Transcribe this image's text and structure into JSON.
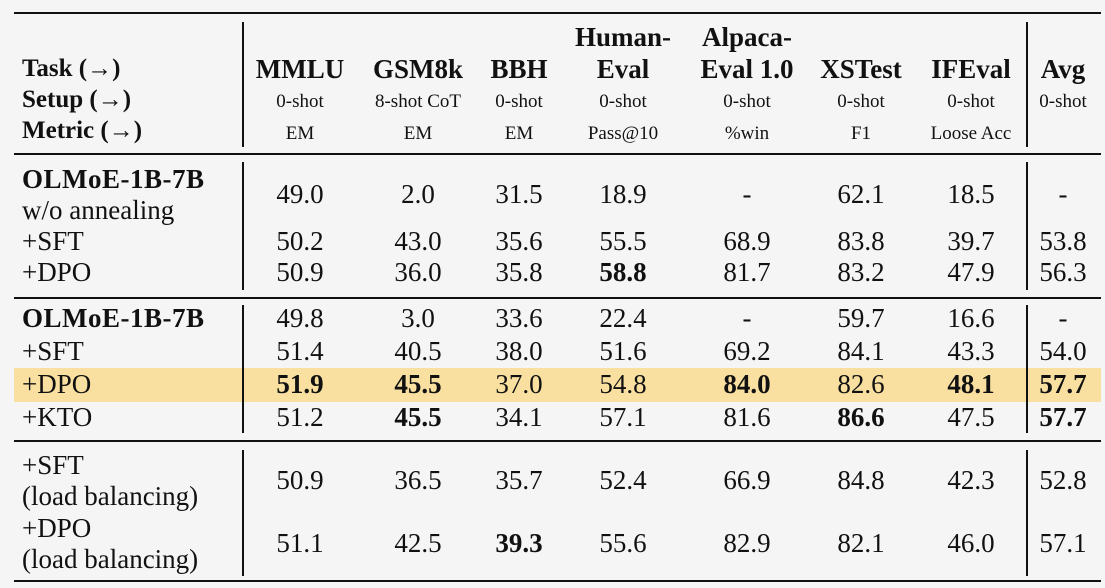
{
  "row_labels": {
    "task": "Task (→)",
    "setup": "Setup (→)",
    "metric": "Metric (→)"
  },
  "columns": [
    {
      "name_line1": "",
      "name_line2": "MMLU",
      "setup": "0-shot",
      "metric": "EM"
    },
    {
      "name_line1": "",
      "name_line2": "GSM8k",
      "setup": "8-shot CoT",
      "metric": "EM"
    },
    {
      "name_line1": "",
      "name_line2": "BBH",
      "setup": "0-shot",
      "metric": "EM"
    },
    {
      "name_line1": "Human-",
      "name_line2": "Eval",
      "setup": "0-shot",
      "metric": "Pass@10"
    },
    {
      "name_line1": "Alpaca-",
      "name_line2": "Eval 1.0",
      "setup": "0-shot",
      "metric": "%win"
    },
    {
      "name_line1": "",
      "name_line2": "XSTest",
      "setup": "0-shot",
      "metric": "F1"
    },
    {
      "name_line1": "",
      "name_line2": "IFEval",
      "setup": "0-shot",
      "metric": "Loose Acc"
    },
    {
      "name_line1": "",
      "name_line2": "Avg",
      "setup": "0-shot",
      "metric": ""
    }
  ],
  "rows": [
    {
      "label": [
        "OLMoE-1B-7B",
        "w/o annealing"
      ],
      "label_bold_first": true,
      "values": [
        "49.0",
        "2.0",
        "31.5",
        "18.9",
        "-",
        "62.1",
        "18.5",
        "-"
      ],
      "bold": []
    },
    {
      "label": [
        "+SFT"
      ],
      "values": [
        "50.2",
        "43.0",
        "35.6",
        "55.5",
        "68.9",
        "83.8",
        "39.7",
        "53.8"
      ],
      "bold": []
    },
    {
      "label": [
        "+DPO"
      ],
      "values": [
        "50.9",
        "36.0",
        "35.8",
        "58.8",
        "81.7",
        "83.2",
        "47.9",
        "56.3"
      ],
      "bold": [
        3
      ]
    },
    {
      "label": [
        "OLMoE-1B-7B"
      ],
      "label_bold_first": true,
      "values": [
        "49.8",
        "3.0",
        "33.6",
        "22.4",
        "-",
        "59.7",
        "16.6",
        "-"
      ],
      "bold": []
    },
    {
      "label": [
        "+SFT"
      ],
      "values": [
        "51.4",
        "40.5",
        "38.0",
        "51.6",
        "69.2",
        "84.1",
        "43.3",
        "54.0"
      ],
      "bold": []
    },
    {
      "label": [
        "+DPO"
      ],
      "highlight": true,
      "values": [
        "51.9",
        "45.5",
        "37.0",
        "54.8",
        "84.0",
        "82.6",
        "48.1",
        "57.7"
      ],
      "bold": [
        0,
        1,
        4,
        6,
        7
      ]
    },
    {
      "label": [
        "+KTO"
      ],
      "values": [
        "51.2",
        "45.5",
        "34.1",
        "57.1",
        "81.6",
        "86.6",
        "47.5",
        "57.7"
      ],
      "bold": [
        1,
        5,
        7
      ]
    },
    {
      "label": [
        "+SFT",
        "(load balancing)"
      ],
      "values": [
        "50.9",
        "36.5",
        "35.7",
        "52.4",
        "66.9",
        "84.8",
        "42.3",
        "52.8"
      ],
      "bold": []
    },
    {
      "label": [
        "+DPO",
        "(load balancing)"
      ],
      "values": [
        "51.1",
        "42.5",
        "39.3",
        "55.6",
        "82.9",
        "82.1",
        "46.0",
        "57.1"
      ],
      "bold": [
        2
      ]
    }
  ],
  "colors": {
    "highlight": "#f9e0a0",
    "background": "#f5f5f5",
    "rule": "#111111"
  }
}
